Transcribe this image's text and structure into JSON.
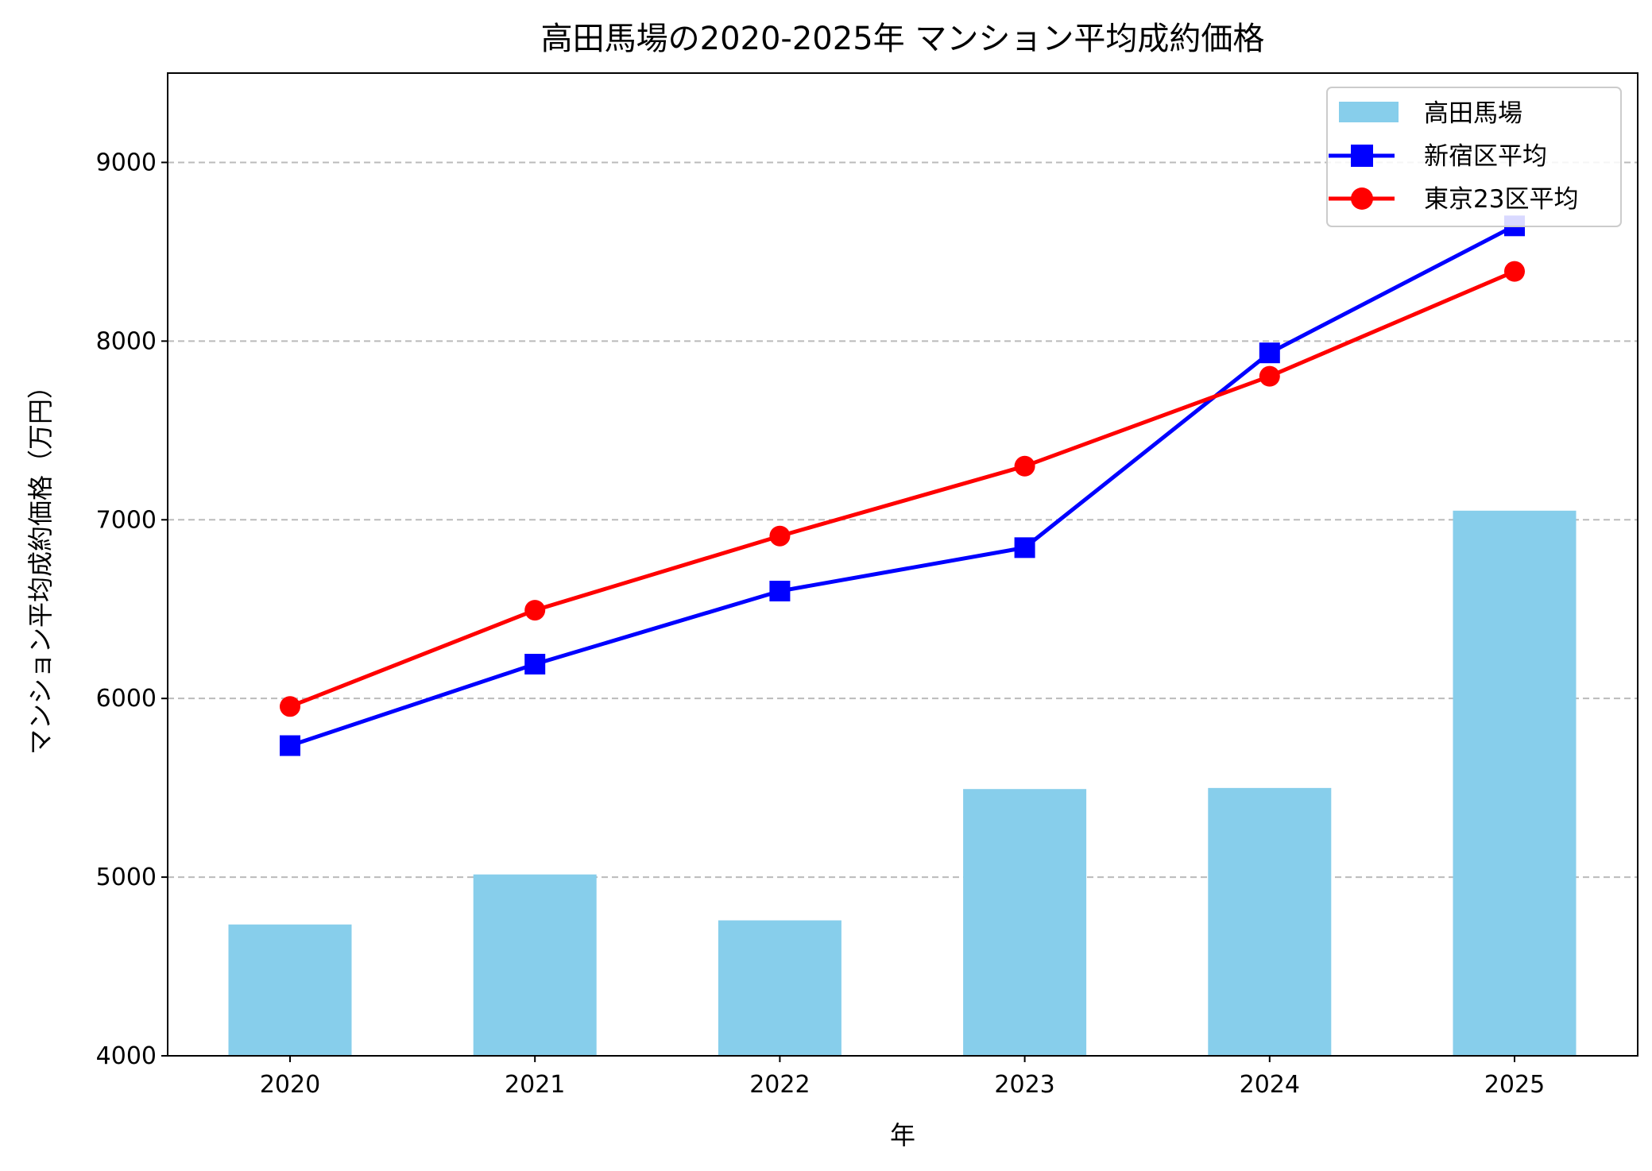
{
  "chart_data": {
    "type": "bar+line",
    "title": "高田馬場の2020-2025年 マンション平均成約価格",
    "xlabel": "年",
    "ylabel": "マンション平均成約価格（万円）",
    "categories": [
      "2020",
      "2021",
      "2022",
      "2023",
      "2024",
      "2025"
    ],
    "ylim": [
      4000,
      9500
    ],
    "yticks": [
      4000,
      5000,
      6000,
      7000,
      8000,
      9000
    ],
    "grid": "y-dashed",
    "legend": "top-right",
    "series": [
      {
        "name": "高田馬場",
        "kind": "bar",
        "color": "#87CEEB",
        "values": [
          4735,
          5015,
          4758,
          5493,
          5499,
          7051
        ]
      },
      {
        "name": "新宿区平均",
        "kind": "line",
        "marker": "square",
        "color": "#0000FF",
        "values": [
          5736,
          6192,
          6601,
          6844,
          7934,
          8645
        ]
      },
      {
        "name": "東京23区平均",
        "kind": "line",
        "marker": "circle",
        "color": "#FF0000",
        "values": [
          5955,
          6494,
          6909,
          7300,
          7803,
          8390
        ]
      }
    ]
  }
}
